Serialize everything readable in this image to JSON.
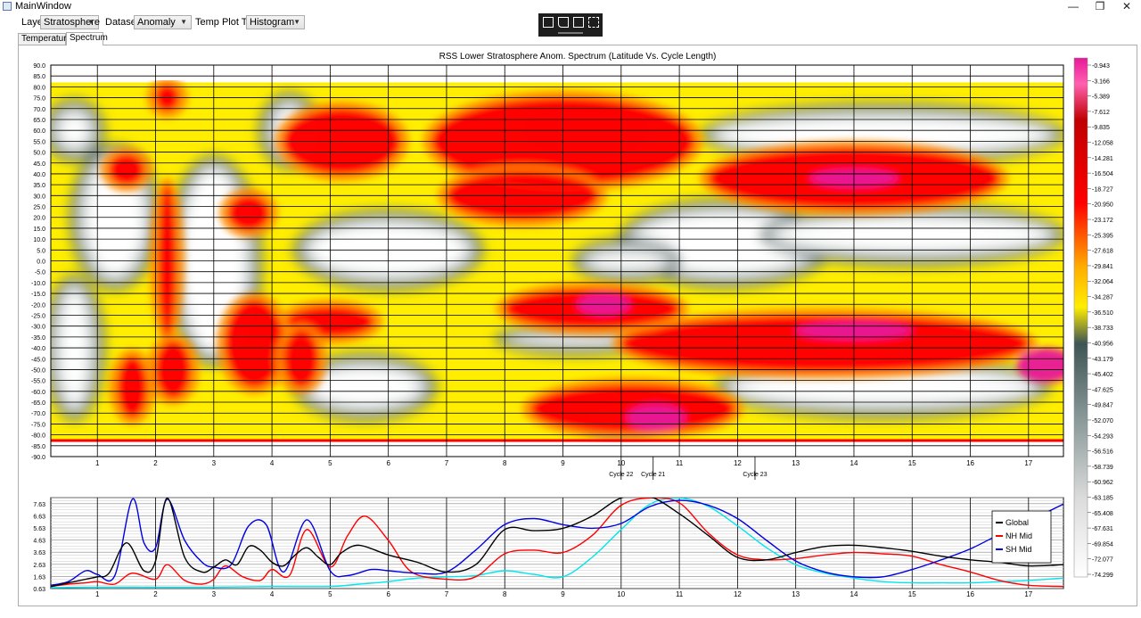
{
  "window": {
    "title": "MainWindow",
    "minimize": "—",
    "restore": "❐",
    "close": "✕"
  },
  "toolbar": {
    "layer_label": "Layer",
    "layer_value": "Stratosphere",
    "dataset_label": "Dataset",
    "dataset_value": "Anomaly",
    "plot_type_label": "Temp Plot Type",
    "plot_type_value": "Histogram"
  },
  "floating_toolbar": {
    "icons": [
      "export-icon",
      "select-icon",
      "zoom-fit-icon",
      "cursor-plot-icon"
    ]
  },
  "tabs": [
    {
      "label": "Temperature",
      "active": false
    },
    {
      "label": "Spectrum",
      "active": true
    }
  ],
  "colors": {
    "high": "#e8189a",
    "mid_high": "#ff0000",
    "mid": "#ffee00",
    "low": "#5a6e6e",
    "lowest": "#ffffff"
  },
  "chart_data": [
    {
      "type": "heatmap",
      "title": "RSS Lower Stratosphere Anom. Spectrum (Latitude Vs. Cycle Length)",
      "xlabel": "",
      "ylabel": "",
      "xlim": [
        0.2,
        17.6
      ],
      "ylim": [
        -90,
        90
      ],
      "x_ticks": [
        "1",
        "2",
        "3",
        "4",
        "5",
        "6",
        "7",
        "8",
        "9",
        "10",
        "11",
        "12",
        "13",
        "14",
        "15",
        "16",
        "17"
      ],
      "y_ticks": [
        "90.0",
        "85.0",
        "80.0",
        "75.0",
        "70.0",
        "65.0",
        "60.0",
        "55.0",
        "50.0",
        "45.0",
        "40.0",
        "35.0",
        "30.0",
        "25.0",
        "20.0",
        "15.0",
        "10.0",
        "5.0",
        "0.0",
        "-5.0",
        "-10.0",
        "-15.0",
        "-20.0",
        "-25.0",
        "-30.0",
        "-35.0",
        "-40.0",
        "-45.0",
        "-50.0",
        "-55.0",
        "-60.0",
        "-65.0",
        "-70.0",
        "-75.0",
        "-80.0",
        "-85.0",
        "-90.0"
      ],
      "cycle_markers": [
        {
          "x": 10.0,
          "label": "Cycle 22"
        },
        {
          "x": 10.55,
          "label": "Cycle 21"
        },
        {
          "x": 12.3,
          "label": "Cycle 23"
        }
      ],
      "colorbar": {
        "labels": [
          "-0.943",
          "-3.166",
          "-5.389",
          "-7.612",
          "-9.835",
          "-12.058",
          "-14.281",
          "-16.504",
          "-18.727",
          "-20.950",
          "-23.172",
          "-25.395",
          "-27.618",
          "-29.841",
          "-32.064",
          "-34.287",
          "-36.510",
          "-38.733",
          "-40.956",
          "-43.179",
          "-45.402",
          "-47.625",
          "-49.847",
          "-52.070",
          "-54.293",
          "-56.516",
          "-58.739",
          "-60.962",
          "-63.185",
          "-65.408",
          "-67.631",
          "-69.854",
          "-72.077",
          "-74.299"
        ]
      },
      "blobs": [
        {
          "x": 9.4,
          "y": 60,
          "w": 2.2,
          "h": 28,
          "level": "high"
        },
        {
          "x": 9.0,
          "y": 55,
          "w": 4.5,
          "h": 40,
          "level": "mid_high"
        },
        {
          "x": 8.3,
          "y": 30,
          "w": 2.6,
          "h": 22,
          "level": "mid_high"
        },
        {
          "x": 14.0,
          "y": 38,
          "w": 5.0,
          "h": 28,
          "level": "mid_high"
        },
        {
          "x": 14.0,
          "y": 38,
          "w": 1.5,
          "h": 8,
          "level": "high"
        },
        {
          "x": 13.5,
          "y": -38,
          "w": 7.0,
          "h": 26,
          "level": "mid_high"
        },
        {
          "x": 14.0,
          "y": -32,
          "w": 2.0,
          "h": 8,
          "level": "high"
        },
        {
          "x": 9.5,
          "y": -22,
          "w": 3.0,
          "h": 18,
          "level": "mid_high"
        },
        {
          "x": 9.7,
          "y": -20,
          "w": 0.9,
          "h": 10,
          "level": "high"
        },
        {
          "x": 10.2,
          "y": -68,
          "w": 3.5,
          "h": 22,
          "level": "mid_high"
        },
        {
          "x": 10.6,
          "y": -72,
          "w": 1.0,
          "h": 12,
          "level": "high"
        },
        {
          "x": 17.3,
          "y": -48,
          "w": 1.0,
          "h": 16,
          "level": "high"
        },
        {
          "x": 5.2,
          "y": 55,
          "w": 2.0,
          "h": 30,
          "level": "mid_high"
        },
        {
          "x": 5.0,
          "y": -28,
          "w": 1.5,
          "h": 14,
          "level": "mid_high"
        },
        {
          "x": 3.6,
          "y": 22,
          "w": 0.7,
          "h": 16,
          "level": "mid_high"
        },
        {
          "x": 3.7,
          "y": -38,
          "w": 1.0,
          "h": 40,
          "level": "mid_high"
        },
        {
          "x": 2.2,
          "y": 0,
          "w": 0.3,
          "h": 70,
          "level": "mid_high"
        },
        {
          "x": 2.2,
          "y": 75,
          "w": 0.4,
          "h": 12,
          "level": "mid_high"
        },
        {
          "x": 1.6,
          "y": -58,
          "w": 0.5,
          "h": 28,
          "level": "mid_high"
        },
        {
          "x": 2.3,
          "y": -50,
          "w": 0.6,
          "h": 26,
          "level": "mid_high"
        },
        {
          "x": 1.5,
          "y": 42,
          "w": 0.6,
          "h": 14,
          "level": "mid_high"
        },
        {
          "x": 4.5,
          "y": -45,
          "w": 0.6,
          "h": 26,
          "level": "mid_high"
        }
      ],
      "cool_blobs": [
        {
          "x": 14.5,
          "y": 58,
          "w": 6.0,
          "h": 22
        },
        {
          "x": 11.8,
          "y": 8,
          "w": 3.5,
          "h": 34
        },
        {
          "x": 15.0,
          "y": 12,
          "w": 5.0,
          "h": 22
        },
        {
          "x": 14.5,
          "y": -58,
          "w": 5.5,
          "h": 22
        },
        {
          "x": 9.2,
          "y": -36,
          "w": 2.5,
          "h": 8
        },
        {
          "x": 5.6,
          "y": -58,
          "w": 2.2,
          "h": 24
        },
        {
          "x": 1.3,
          "y": 20,
          "w": 1.3,
          "h": 60
        },
        {
          "x": 3.0,
          "y": 0,
          "w": 1.4,
          "h": 90
        },
        {
          "x": 6.0,
          "y": 5,
          "w": 3.0,
          "h": 30
        },
        {
          "x": 0.6,
          "y": 60,
          "w": 0.8,
          "h": 22
        },
        {
          "x": 0.6,
          "y": -40,
          "w": 0.8,
          "h": 60
        },
        {
          "x": 10.1,
          "y": 0,
          "w": 1.6,
          "h": 14
        },
        {
          "x": 10.0,
          "y": -74,
          "w": 1.0,
          "h": 10
        },
        {
          "x": 4.3,
          "y": 60,
          "w": 0.8,
          "h": 28
        }
      ]
    },
    {
      "type": "line",
      "xlabel": "",
      "ylabel": "",
      "xlim": [
        0.2,
        17.6
      ],
      "ylim": [
        0.63,
        8.13
      ],
      "x_ticks": [
        "1",
        "2",
        "3",
        "4",
        "5",
        "6",
        "7",
        "8",
        "9",
        "10",
        "11",
        "12",
        "13",
        "14",
        "15",
        "16",
        "17"
      ],
      "y_ticks": [
        "7.63",
        "6.63",
        "5.63",
        "4.63",
        "3.63",
        "2.63",
        "1.63",
        "0.63"
      ],
      "legend_position": "right",
      "series": [
        {
          "name": "Global",
          "color": "#000000",
          "x": [
            0.2,
            0.5,
            0.8,
            1.0,
            1.2,
            1.5,
            1.8,
            2.0,
            2.2,
            2.5,
            2.8,
            3.0,
            3.2,
            3.4,
            3.6,
            3.8,
            4.0,
            4.2,
            4.4,
            4.6,
            4.8,
            5.0,
            5.2,
            5.5,
            6.0,
            6.5,
            7.0,
            7.5,
            8.0,
            8.5,
            9.0,
            9.5,
            10.0,
            10.5,
            11.0,
            11.5,
            12.0,
            12.5,
            13.0,
            13.5,
            14.0,
            14.5,
            15.0,
            15.5,
            16.0,
            16.5,
            17.0,
            17.6
          ],
          "y": [
            0.8,
            1.1,
            1.4,
            1.6,
            1.9,
            4.4,
            2.1,
            2.9,
            8.1,
            3.2,
            2.0,
            2.4,
            3.0,
            2.6,
            4.1,
            3.8,
            2.8,
            2.5,
            3.4,
            4.0,
            3.2,
            2.6,
            3.6,
            4.2,
            3.4,
            2.8,
            2.0,
            2.6,
            5.5,
            5.4,
            5.6,
            6.6,
            8.1,
            8.2,
            6.8,
            5.0,
            3.2,
            3.0,
            3.6,
            4.1,
            4.2,
            4.0,
            3.7,
            3.3,
            3.0,
            2.8,
            2.5,
            2.6
          ]
        },
        {
          "name": "NH Mid",
          "color": "#ff0000",
          "x": [
            0.2,
            0.5,
            0.8,
            1.0,
            1.3,
            1.6,
            2.0,
            2.2,
            2.5,
            2.8,
            3.0,
            3.2,
            3.5,
            3.8,
            4.0,
            4.3,
            4.6,
            5.0,
            5.3,
            5.6,
            6.0,
            6.4,
            7.0,
            7.5,
            8.0,
            8.5,
            9.0,
            9.5,
            10.0,
            10.5,
            11.0,
            11.5,
            12.0,
            12.5,
            13.0,
            13.5,
            14.0,
            14.5,
            15.0,
            15.5,
            16.0,
            16.5,
            17.0,
            17.6
          ],
          "y": [
            0.8,
            1.0,
            1.1,
            1.2,
            1.0,
            1.9,
            1.4,
            2.6,
            1.3,
            1.0,
            1.4,
            2.5,
            1.6,
            1.3,
            2.2,
            1.7,
            5.5,
            2.4,
            5.0,
            6.6,
            4.6,
            2.0,
            1.4,
            1.6,
            3.5,
            3.8,
            3.6,
            5.0,
            7.5,
            8.1,
            7.7,
            5.2,
            3.4,
            3.0,
            3.1,
            3.4,
            3.6,
            3.5,
            3.3,
            2.6,
            2.0,
            1.3,
            0.9,
            0.8
          ]
        },
        {
          "name": "SH Mid",
          "color": "#0000e0",
          "x": [
            0.2,
            0.5,
            0.8,
            1.0,
            1.3,
            1.6,
            1.8,
            2.0,
            2.2,
            2.5,
            2.8,
            3.0,
            3.3,
            3.6,
            3.9,
            4.2,
            4.6,
            5.0,
            5.3,
            5.7,
            6.0,
            6.5,
            7.0,
            7.5,
            8.0,
            8.5,
            9.0,
            9.5,
            10.0,
            10.5,
            11.0,
            11.5,
            12.0,
            12.5,
            13.0,
            13.5,
            14.0,
            14.5,
            15.0,
            15.5,
            16.0,
            16.5,
            17.0,
            17.6
          ],
          "y": [
            0.9,
            1.2,
            2.1,
            1.8,
            1.7,
            8.0,
            4.4,
            4.0,
            8.0,
            4.6,
            2.8,
            2.4,
            2.6,
            5.8,
            5.9,
            2.0,
            6.3,
            2.1,
            1.7,
            2.2,
            2.1,
            1.9,
            2.0,
            3.8,
            5.9,
            6.4,
            5.9,
            5.6,
            6.0,
            7.4,
            7.9,
            7.5,
            6.4,
            4.6,
            2.9,
            2.0,
            1.6,
            1.6,
            2.2,
            3.0,
            3.9,
            5.1,
            6.2,
            7.6
          ]
        },
        {
          "name": "",
          "color": "#00e5ee",
          "x": [
            0.2,
            1.0,
            2.0,
            3.0,
            4.0,
            5.0,
            5.5,
            6.0,
            6.5,
            7.0,
            7.5,
            8.0,
            8.5,
            9.0,
            9.5,
            10.0,
            10.5,
            11.0,
            11.5,
            12.0,
            12.5,
            13.0,
            13.5,
            14.0,
            14.5,
            15.0,
            15.5,
            16.0,
            16.5,
            17.0,
            17.6
          ],
          "y": [
            0.7,
            0.75,
            0.75,
            0.75,
            0.8,
            0.8,
            1.0,
            1.2,
            1.5,
            1.6,
            1.7,
            2.1,
            1.8,
            1.6,
            3.2,
            5.5,
            7.6,
            8.1,
            7.4,
            5.8,
            4.0,
            2.6,
            1.9,
            1.5,
            1.2,
            1.1,
            1.1,
            1.1,
            1.2,
            1.3,
            1.5
          ]
        }
      ]
    }
  ]
}
